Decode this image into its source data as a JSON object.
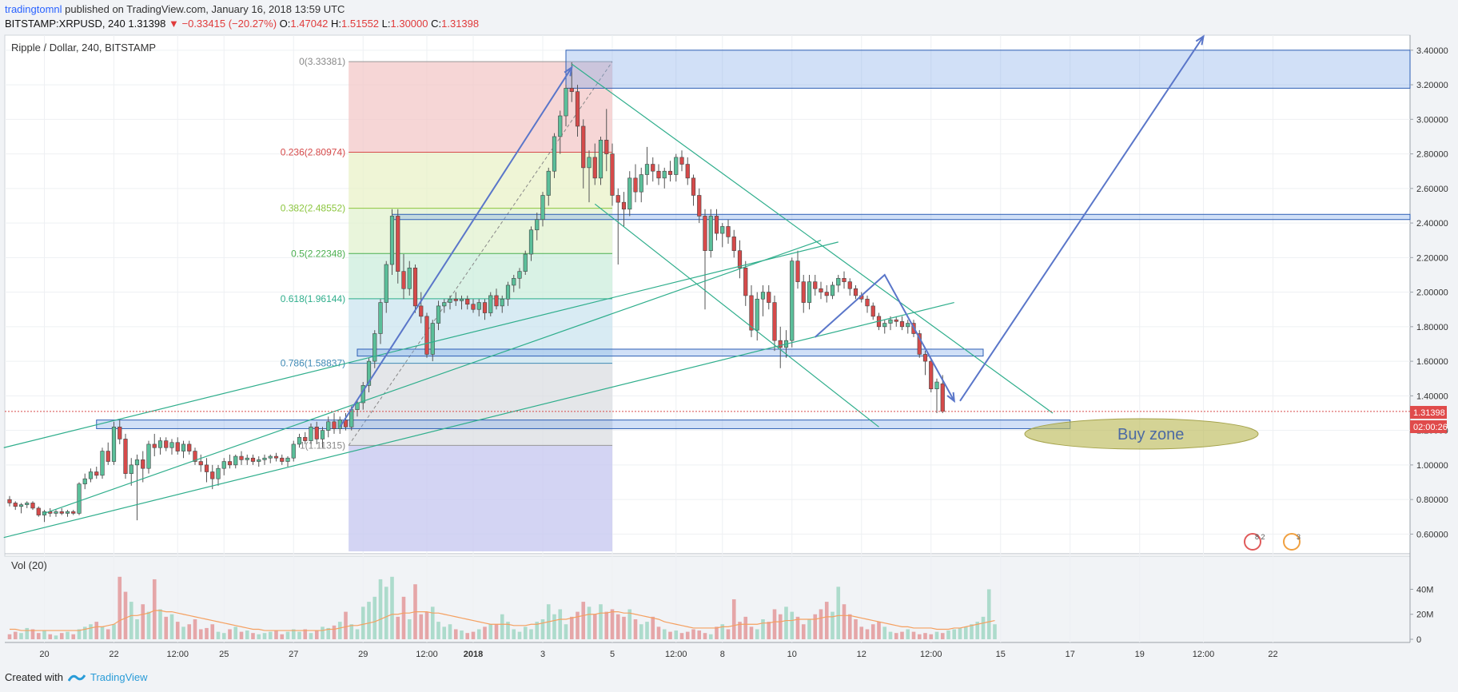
{
  "header": {
    "author": "tradingtomnl",
    "published": "published on TradingView.com, January 16, 2018 13:59 UTC",
    "symbol": "BITSTAMP:XRPUSD, 240",
    "last": "1.31398",
    "change": "−0.33415 (−20.27%)",
    "ohlc": {
      "o": "1.47042",
      "h": "1.51552",
      "l": "1.30000",
      "c": "1.31398"
    }
  },
  "chart_title": "Ripple / Dollar, 240, BITSTAMP",
  "volume_label": "Vol (20)",
  "footer": {
    "created_with": "Created with",
    "brand": "TradingView"
  },
  "annotation": {
    "buy_zone": "Buy zone"
  },
  "price_tag": {
    "price": "1.31398",
    "countdown": "02:00:26"
  },
  "badges": [
    {
      "label": "8 2"
    },
    {
      "label": "3"
    }
  ],
  "colors": {
    "up": "#5bbf9a",
    "down": "#d64a4a",
    "fib_line": "#3f8ab5",
    "zone": "#7aa7e8",
    "channel": "#2fae8c",
    "arrow": "#5a76c9",
    "ma": "#f5a060"
  },
  "chart_data": {
    "type": "candlestick",
    "title": "Ripple / Dollar, 240, BITSTAMP",
    "ylim": [
      0.5,
      3.45
    ],
    "y_ticks": [
      "3.40000",
      "3.20000",
      "3.00000",
      "2.80000",
      "2.60000",
      "2.40000",
      "2.20000",
      "2.00000",
      "1.80000",
      "1.60000",
      "1.40000",
      "1.20000",
      "1.00000",
      "0.80000",
      "0.60000"
    ],
    "y_tick_values": [
      3.4,
      3.2,
      3.0,
      2.8,
      2.6,
      2.4,
      2.2,
      2.0,
      1.8,
      1.6,
      1.4,
      1.2,
      1.0,
      0.8,
      0.6
    ],
    "x_ticks": [
      "20",
      "22",
      "12:00",
      "25",
      "27",
      "29",
      "12:00",
      "2018",
      "3",
      "5",
      "12:00",
      "8",
      "10",
      "12",
      "12:00",
      "15",
      "17",
      "19",
      "12:00",
      "22"
    ],
    "x_tick_index": [
      6,
      18,
      29,
      37,
      49,
      61,
      72,
      80,
      92,
      104,
      115,
      123,
      135,
      147,
      159,
      171,
      183,
      195,
      206,
      218
    ],
    "fibonacci": [
      {
        "label": "0(3.33381)",
        "value": 3.33381
      },
      {
        "label": "0.236(2.80974)",
        "value": 2.80974
      },
      {
        "label": "0.382(2.48552)",
        "value": 2.48552
      },
      {
        "label": "0.5(2.22348)",
        "value": 2.22348
      },
      {
        "label": "0.618(1.96144)",
        "value": 1.96144
      },
      {
        "label": "0.786(1.58837)",
        "value": 1.58837
      },
      {
        "label": "1(1.11315)",
        "value": 1.11315
      }
    ],
    "volume_ticks": [
      "40M",
      "20M",
      "0"
    ],
    "volume_tick_values": [
      40,
      20,
      0
    ],
    "volume_max": 55,
    "candles": [
      [
        0.8,
        0.82,
        0.76,
        0.78
      ],
      [
        0.78,
        0.79,
        0.74,
        0.76
      ],
      [
        0.76,
        0.78,
        0.72,
        0.77
      ],
      [
        0.77,
        0.79,
        0.75,
        0.78
      ],
      [
        0.78,
        0.79,
        0.74,
        0.75
      ],
      [
        0.75,
        0.76,
        0.7,
        0.71
      ],
      [
        0.71,
        0.74,
        0.67,
        0.73
      ],
      [
        0.73,
        0.75,
        0.7,
        0.72
      ],
      [
        0.72,
        0.74,
        0.7,
        0.73
      ],
      [
        0.73,
        0.75,
        0.71,
        0.72
      ],
      [
        0.72,
        0.74,
        0.7,
        0.73
      ],
      [
        0.73,
        0.74,
        0.71,
        0.72
      ],
      [
        0.72,
        0.9,
        0.71,
        0.89
      ],
      [
        0.89,
        0.95,
        0.86,
        0.92
      ],
      [
        0.92,
        0.98,
        0.9,
        0.96
      ],
      [
        0.96,
        0.99,
        0.92,
        0.94
      ],
      [
        0.94,
        1.1,
        0.92,
        1.08
      ],
      [
        1.08,
        1.13,
        1.0,
        1.02
      ],
      [
        1.02,
        1.25,
        1.0,
        1.22
      ],
      [
        1.22,
        1.26,
        1.12,
        1.15
      ],
      [
        1.15,
        1.18,
        0.92,
        0.95
      ],
      [
        0.95,
        1.04,
        0.88,
        1.0
      ],
      [
        1.0,
        1.06,
        0.68,
        1.03
      ],
      [
        1.03,
        1.08,
        0.9,
        0.98
      ],
      [
        0.98,
        1.14,
        0.95,
        1.12
      ],
      [
        1.12,
        1.18,
        1.05,
        1.1
      ],
      [
        1.1,
        1.16,
        1.06,
        1.14
      ],
      [
        1.14,
        1.16,
        1.08,
        1.1
      ],
      [
        1.1,
        1.15,
        1.06,
        1.13
      ],
      [
        1.13,
        1.16,
        1.06,
        1.08
      ],
      [
        1.08,
        1.14,
        1.04,
        1.12
      ],
      [
        1.12,
        1.14,
        1.06,
        1.08
      ],
      [
        1.08,
        1.1,
        1.0,
        1.02
      ],
      [
        1.02,
        1.06,
        0.96,
        1.0
      ],
      [
        1.0,
        1.04,
        0.9,
        0.96
      ],
      [
        0.96,
        1.0,
        0.86,
        0.92
      ],
      [
        0.92,
        1.0,
        0.88,
        0.98
      ],
      [
        0.98,
        1.04,
        0.94,
        1.02
      ],
      [
        1.02,
        1.06,
        0.98,
        1.0
      ],
      [
        1.0,
        1.06,
        0.98,
        1.05
      ],
      [
        1.05,
        1.08,
        1.0,
        1.03
      ],
      [
        1.03,
        1.06,
        1.0,
        1.04
      ],
      [
        1.04,
        1.06,
        1.0,
        1.02
      ],
      [
        1.02,
        1.05,
        0.99,
        1.03
      ],
      [
        1.03,
        1.06,
        1.0,
        1.04
      ],
      [
        1.04,
        1.06,
        1.01,
        1.05
      ],
      [
        1.05,
        1.07,
        1.02,
        1.04
      ],
      [
        1.04,
        1.06,
        1.0,
        1.02
      ],
      [
        1.02,
        1.05,
        0.99,
        1.04
      ],
      [
        1.04,
        1.14,
        1.02,
        1.12
      ],
      [
        1.12,
        1.18,
        1.1,
        1.16
      ],
      [
        1.16,
        1.19,
        1.12,
        1.14
      ],
      [
        1.14,
        1.24,
        1.12,
        1.22
      ],
      [
        1.22,
        1.25,
        1.12,
        1.15
      ],
      [
        1.15,
        1.22,
        1.1,
        1.2
      ],
      [
        1.2,
        1.28,
        1.16,
        1.25
      ],
      [
        1.25,
        1.3,
        1.18,
        1.21
      ],
      [
        1.21,
        1.28,
        1.18,
        1.26
      ],
      [
        1.26,
        1.3,
        1.2,
        1.22
      ],
      [
        1.22,
        1.34,
        1.2,
        1.32
      ],
      [
        1.32,
        1.38,
        1.28,
        1.36
      ],
      [
        1.36,
        1.48,
        1.32,
        1.46
      ],
      [
        1.46,
        1.62,
        1.42,
        1.6
      ],
      [
        1.6,
        1.78,
        1.56,
        1.76
      ],
      [
        1.76,
        1.96,
        1.7,
        1.94
      ],
      [
        1.94,
        2.18,
        1.88,
        2.16
      ],
      [
        2.16,
        2.48,
        2.1,
        2.44
      ],
      [
        2.44,
        2.48,
        2.05,
        2.12
      ],
      [
        2.12,
        2.22,
        1.96,
        2.02
      ],
      [
        2.02,
        2.18,
        1.98,
        2.14
      ],
      [
        2.14,
        2.16,
        1.88,
        1.92
      ],
      [
        1.92,
        2.0,
        1.82,
        1.86
      ],
      [
        1.86,
        1.88,
        1.62,
        1.64
      ],
      [
        1.64,
        1.84,
        1.6,
        1.82
      ],
      [
        1.82,
        1.95,
        1.78,
        1.92
      ],
      [
        1.92,
        1.96,
        1.88,
        1.94
      ],
      [
        1.94,
        1.98,
        1.9,
        1.96
      ],
      [
        1.96,
        2.0,
        1.92,
        1.95
      ],
      [
        1.95,
        1.98,
        1.9,
        1.96
      ],
      [
        1.96,
        1.98,
        1.9,
        1.93
      ],
      [
        1.93,
        1.96,
        1.88,
        1.9
      ],
      [
        1.9,
        1.96,
        1.86,
        1.94
      ],
      [
        1.94,
        1.96,
        1.84,
        1.88
      ],
      [
        1.88,
        2.0,
        1.86,
        1.98
      ],
      [
        1.98,
        2.02,
        1.9,
        1.92
      ],
      [
        1.92,
        1.98,
        1.88,
        1.96
      ],
      [
        1.96,
        2.06,
        1.92,
        2.04
      ],
      [
        2.04,
        2.1,
        2.0,
        2.08
      ],
      [
        2.08,
        2.14,
        2.02,
        2.12
      ],
      [
        2.12,
        2.24,
        2.1,
        2.22
      ],
      [
        2.22,
        2.38,
        2.18,
        2.36
      ],
      [
        2.36,
        2.46,
        2.3,
        2.42
      ],
      [
        2.42,
        2.58,
        2.38,
        2.56
      ],
      [
        2.56,
        2.72,
        2.5,
        2.7
      ],
      [
        2.7,
        2.92,
        2.66,
        2.9
      ],
      [
        2.9,
        3.05,
        2.8,
        3.02
      ],
      [
        3.02,
        3.2,
        2.96,
        3.18
      ],
      [
        3.18,
        3.33,
        3.1,
        3.16
      ],
      [
        3.16,
        3.2,
        2.9,
        2.96
      ],
      [
        2.96,
        3.0,
        2.6,
        2.72
      ],
      [
        2.72,
        2.82,
        2.52,
        2.78
      ],
      [
        2.78,
        2.86,
        2.62,
        2.66
      ],
      [
        2.66,
        2.9,
        2.62,
        2.88
      ],
      [
        2.88,
        3.06,
        2.7,
        2.8
      ],
      [
        2.8,
        2.86,
        2.5,
        2.56
      ],
      [
        2.56,
        2.6,
        2.16,
        2.52
      ],
      [
        2.52,
        2.58,
        2.38,
        2.48
      ],
      [
        2.48,
        2.7,
        2.44,
        2.66
      ],
      [
        2.66,
        2.74,
        2.52,
        2.58
      ],
      [
        2.58,
        2.72,
        2.52,
        2.68
      ],
      [
        2.68,
        2.84,
        2.62,
        2.74
      ],
      [
        2.74,
        2.78,
        2.64,
        2.7
      ],
      [
        2.7,
        2.74,
        2.62,
        2.66
      ],
      [
        2.66,
        2.72,
        2.6,
        2.7
      ],
      [
        2.7,
        2.76,
        2.64,
        2.68
      ],
      [
        2.68,
        2.8,
        2.64,
        2.78
      ],
      [
        2.78,
        2.82,
        2.7,
        2.74
      ],
      [
        2.74,
        2.78,
        2.62,
        2.66
      ],
      [
        2.66,
        2.68,
        2.5,
        2.56
      ],
      [
        2.56,
        2.6,
        2.4,
        2.44
      ],
      [
        2.44,
        2.48,
        1.9,
        2.24
      ],
      [
        2.24,
        2.48,
        2.2,
        2.44
      ],
      [
        2.44,
        2.48,
        2.3,
        2.34
      ],
      [
        2.34,
        2.4,
        2.26,
        2.38
      ],
      [
        2.38,
        2.42,
        2.28,
        2.32
      ],
      [
        2.32,
        2.36,
        2.2,
        2.24
      ],
      [
        2.24,
        2.3,
        2.08,
        2.14
      ],
      [
        2.14,
        2.18,
        1.92,
        1.98
      ],
      [
        1.98,
        2.04,
        1.74,
        1.78
      ],
      [
        1.78,
        2.0,
        1.72,
        1.96
      ],
      [
        1.96,
        2.04,
        1.86,
        2.0
      ],
      [
        2.0,
        2.04,
        1.9,
        1.94
      ],
      [
        1.94,
        1.98,
        1.66,
        1.72
      ],
      [
        1.72,
        1.8,
        1.56,
        1.68
      ],
      [
        1.68,
        1.78,
        1.62,
        1.72
      ],
      [
        1.72,
        2.2,
        1.68,
        2.18
      ],
      [
        2.18,
        2.24,
        2.02,
        2.06
      ],
      [
        2.06,
        2.1,
        1.88,
        1.94
      ],
      [
        1.94,
        2.1,
        1.9,
        2.06
      ],
      [
        2.06,
        2.1,
        1.98,
        2.02
      ],
      [
        2.02,
        2.06,
        1.96,
        2.0
      ],
      [
        2.0,
        2.04,
        1.94,
        1.98
      ],
      [
        1.98,
        2.06,
        1.96,
        2.04
      ],
      [
        2.04,
        2.1,
        2.0,
        2.08
      ],
      [
        2.08,
        2.12,
        2.02,
        2.06
      ],
      [
        2.06,
        2.08,
        1.98,
        2.02
      ],
      [
        2.02,
        2.04,
        1.96,
        1.98
      ],
      [
        1.98,
        2.0,
        1.94,
        1.96
      ],
      [
        1.96,
        1.98,
        1.88,
        1.92
      ],
      [
        1.92,
        1.94,
        1.84,
        1.86
      ],
      [
        1.86,
        1.88,
        1.78,
        1.8
      ],
      [
        1.8,
        1.84,
        1.76,
        1.82
      ],
      [
        1.82,
        1.86,
        1.78,
        1.84
      ],
      [
        1.84,
        1.86,
        1.8,
        1.83
      ],
      [
        1.83,
        1.86,
        1.78,
        1.8
      ],
      [
        1.8,
        1.84,
        1.76,
        1.82
      ],
      [
        1.82,
        1.84,
        1.74,
        1.76
      ],
      [
        1.76,
        1.78,
        1.62,
        1.64
      ],
      [
        1.64,
        1.66,
        1.52,
        1.6
      ],
      [
        1.6,
        1.62,
        1.42,
        1.44
      ],
      [
        1.44,
        1.5,
        1.3,
        1.48
      ],
      [
        1.47,
        1.52,
        1.3,
        1.31
      ]
    ],
    "volume": [
      4,
      6,
      5,
      9,
      8,
      5,
      7,
      4,
      3,
      5,
      6,
      4,
      8,
      10,
      12,
      14,
      10,
      8,
      12,
      50,
      38,
      30,
      16,
      28,
      22,
      48,
      24,
      18,
      20,
      14,
      10,
      12,
      16,
      8,
      9,
      12,
      6,
      5,
      8,
      10,
      6,
      7,
      5,
      4,
      5,
      6,
      7,
      4,
      6,
      8,
      6,
      8,
      5,
      7,
      10,
      9,
      11,
      14,
      22,
      12,
      8,
      26,
      30,
      34,
      48,
      42,
      50,
      18,
      34,
      16,
      44,
      20,
      22,
      26,
      14,
      10,
      12,
      8,
      7,
      5,
      6,
      8,
      10,
      12,
      12,
      20,
      14,
      8,
      6,
      10,
      8,
      14,
      16,
      28,
      20,
      24,
      12,
      18,
      22,
      30,
      26,
      20,
      28,
      22,
      24,
      20,
      18,
      24,
      16,
      12,
      14,
      18,
      10,
      8,
      6,
      7,
      5,
      6,
      8,
      7,
      5,
      4,
      10,
      12,
      8,
      32,
      14,
      18,
      10,
      8,
      16,
      14,
      24,
      20,
      26,
      22,
      18,
      12,
      16,
      20,
      24,
      30,
      22,
      42,
      28,
      20,
      16,
      10,
      8,
      12,
      14,
      10,
      6,
      5,
      6,
      8,
      6,
      4,
      5,
      4,
      6,
      5,
      7,
      8,
      9,
      10,
      12,
      14,
      18,
      40,
      12
    ],
    "ma20": [
      8,
      8,
      7,
      7,
      7,
      7,
      7,
      7,
      7,
      7,
      7,
      7,
      7,
      8,
      9,
      10,
      10,
      11,
      12,
      15,
      17,
      19,
      19,
      20,
      21,
      23,
      23,
      22,
      22,
      21,
      20,
      19,
      18,
      17,
      16,
      15,
      14,
      13,
      12,
      11,
      10,
      9,
      8,
      8,
      7,
      7,
      7,
      7,
      7,
      7,
      7,
      7,
      7,
      7,
      7,
      8,
      8,
      9,
      10,
      11,
      11,
      12,
      13,
      14,
      16,
      18,
      20,
      20,
      21,
      21,
      22,
      22,
      22,
      21,
      21,
      20,
      19,
      18,
      17,
      16,
      15,
      14,
      13,
      12,
      12,
      12,
      12,
      11,
      11,
      11,
      12,
      12,
      13,
      14,
      15,
      16,
      16,
      17,
      18,
      19,
      20,
      20,
      21,
      21,
      22,
      22,
      21,
      21,
      20,
      19,
      18,
      17,
      16,
      14,
      13,
      12,
      11,
      10,
      9,
      9,
      9,
      9,
      9,
      10,
      10,
      11,
      12,
      12,
      12,
      12,
      13,
      13,
      14,
      14,
      15,
      15,
      16,
      16,
      16,
      16,
      17,
      18,
      18,
      19,
      19,
      19,
      18,
      17,
      16,
      15,
      14,
      13,
      12,
      11,
      10,
      10,
      9,
      9,
      9,
      9,
      8,
      8,
      8,
      9,
      9,
      10,
      11,
      12,
      13,
      14,
      15
    ]
  }
}
